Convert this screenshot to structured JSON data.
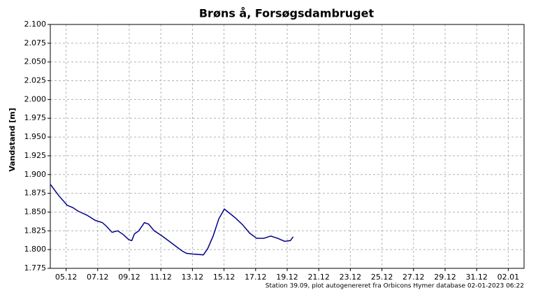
{
  "chart_data": {
    "type": "line",
    "title": "Brøns å, Forsøgsdambruget",
    "y_label": "Vandstand [m]",
    "footer": "Station 39.09, plot autogenereret fra Orbicons Hymer database 02-01-2023 06:22",
    "grid": true,
    "xlim": [
      4,
      34
    ],
    "xticks": [
      {
        "value": 5,
        "label": "05.12"
      },
      {
        "value": 7,
        "label": "07.12"
      },
      {
        "value": 9,
        "label": "09.12"
      },
      {
        "value": 11,
        "label": "11.12"
      },
      {
        "value": 13,
        "label": "13.12"
      },
      {
        "value": 15,
        "label": "15.12"
      },
      {
        "value": 17,
        "label": "17.12"
      },
      {
        "value": 19,
        "label": "19.12"
      },
      {
        "value": 21,
        "label": "21.12"
      },
      {
        "value": 23,
        "label": "23.12"
      },
      {
        "value": 25,
        "label": "25.12"
      },
      {
        "value": 27,
        "label": "27.12"
      },
      {
        "value": 29,
        "label": "29.12"
      },
      {
        "value": 31,
        "label": "31.12"
      },
      {
        "value": 33,
        "label": "02.01"
      }
    ],
    "ylim": [
      1.775,
      2.1
    ],
    "yticks": [
      1.775,
      {
        "value": 1.8,
        "label": "1.800"
      },
      1.825,
      {
        "value": 1.85,
        "label": "1.850"
      },
      1.875,
      {
        "value": 1.9,
        "label": "1.900"
      },
      1.925,
      {
        "value": 1.95,
        "label": "1.950"
      },
      1.975,
      {
        "value": 2.0,
        "label": "2.000"
      },
      2.025,
      {
        "value": 2.05,
        "label": "2.050"
      },
      2.075,
      {
        "value": 2.1,
        "label": "2.100"
      }
    ],
    "x": [
      4.0,
      4.53,
      5.07,
      5.42,
      5.78,
      6.31,
      6.84,
      7.29,
      7.56,
      7.91,
      8.27,
      8.62,
      8.98,
      9.16,
      9.33,
      9.6,
      9.96,
      10.22,
      10.58,
      11.02,
      11.47,
      11.91,
      12.36,
      12.62,
      13.07,
      13.69,
      13.96,
      14.31,
      14.67,
      15.02,
      15.38,
      15.73,
      16.18,
      16.62,
      17.07,
      17.51,
      17.96,
      18.4,
      18.84,
      19.2,
      19.38
    ],
    "series": [
      {
        "color": "#00008b",
        "values": [
          1.887,
          1.872,
          1.859,
          1.856,
          1.851,
          1.846,
          1.839,
          1.836,
          1.831,
          1.823,
          1.825,
          1.82,
          1.813,
          1.812,
          1.821,
          1.825,
          1.836,
          1.834,
          1.825,
          1.819,
          1.812,
          1.805,
          1.798,
          1.795,
          1.794,
          1.793,
          1.801,
          1.818,
          1.841,
          1.854,
          1.848,
          1.842,
          1.833,
          1.822,
          1.815,
          1.815,
          1.818,
          1.815,
          1.811,
          1.812,
          1.817
        ]
      }
    ]
  }
}
